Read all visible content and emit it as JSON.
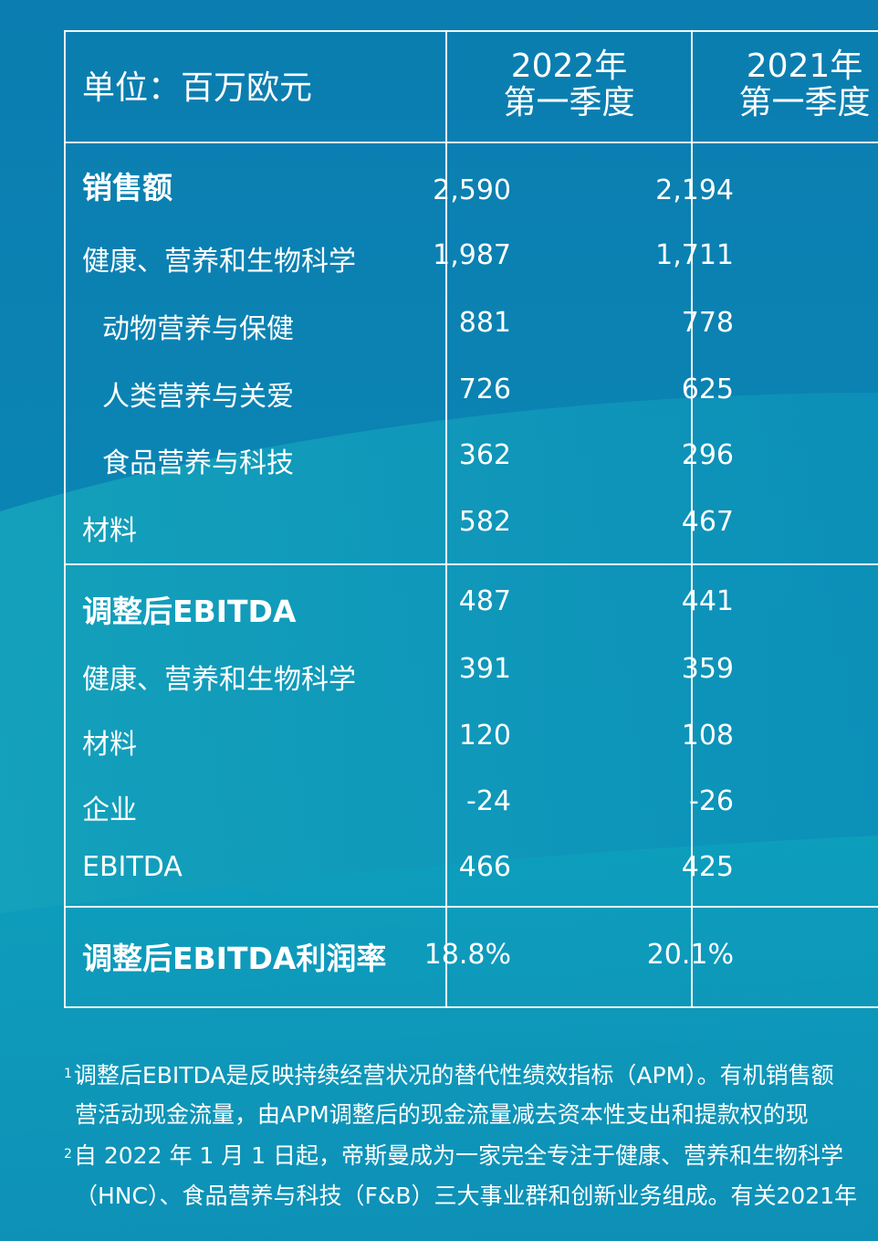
{
  "header": {
    "unit_label": "单位：百万欧元",
    "col1_year": "2022年",
    "col1_period": "第一季度",
    "col2_year": "2021年",
    "col2_period": "第一季度"
  },
  "rows": [
    {
      "label": "销售额",
      "v1": "2,590",
      "v2": "2,194"
    },
    {
      "label": "健康、营养和生物科学",
      "v1": "1,987",
      "v2": "1,711"
    },
    {
      "label": "动物营养与保健",
      "v1": "881",
      "v2": "778"
    },
    {
      "label": "人类营养与关爱",
      "v1": "726",
      "v2": "625"
    },
    {
      "label": "食品营养与科技",
      "v1": "362",
      "v2": "296"
    },
    {
      "label": "材料",
      "v1": "582",
      "v2": "467"
    },
    {
      "label": "调整后EBITDA",
      "v1": "487",
      "v2": "441"
    },
    {
      "label": "健康、营养和生物科学",
      "v1": "391",
      "v2": "359"
    },
    {
      "label": "材料",
      "v1": "120",
      "v2": "108"
    },
    {
      "label": "企业",
      "v1": "-24",
      "v2": "-26"
    },
    {
      "label": "EBITDA",
      "v1": "466",
      "v2": "425"
    },
    {
      "label": "调整后EBITDA利润率",
      "v1": "18.8%",
      "v2": "20.1%"
    }
  ],
  "footnotes": {
    "n1_mark": "1",
    "n1_line1": "调整后EBITDA是反映持续经营状况的替代性绩效指标（APM）。有机销售额",
    "n1_line2": "营活动现金流量，由APM调整后的现金流量减去资本性支出和提款权的现",
    "n2_mark": "2",
    "n2_line1": "自 2022 年 1 月 1 日起，帝斯曼成为一家完全专注于健康、营养和生物科学",
    "n2_line2": "（HNC）、食品营养与科技（F&B）三大事业群和创新业务组成。有关2021年"
  },
  "colors": {
    "bg_top": "#0a7fae",
    "bg_bottom": "#0f9fb6",
    "line": "#ffffff"
  }
}
